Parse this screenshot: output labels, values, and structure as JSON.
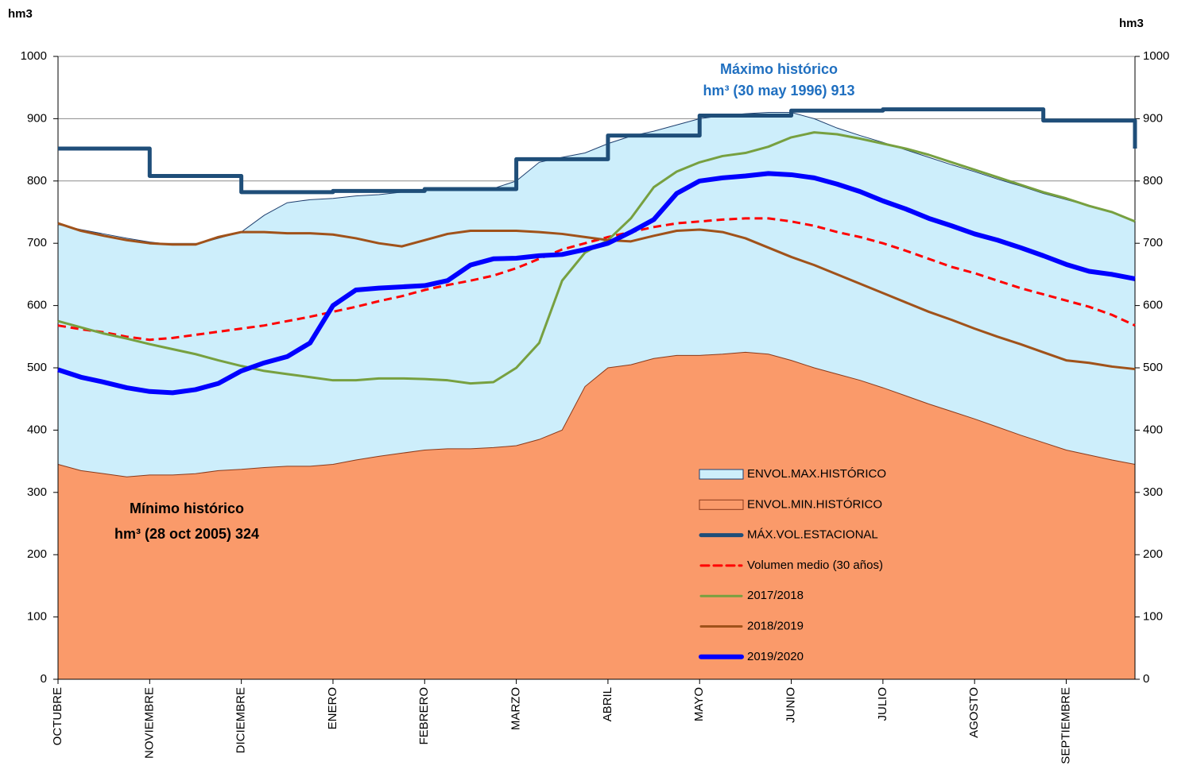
{
  "chart_data": {
    "type": "line",
    "y_label": "hm3",
    "y2_label": "hm3",
    "annotations": [
      "Máximo histórico",
      "hm³ (30 may 1996) 913",
      "Mínimo histórico",
      "hm³ (28 oct 2005) 324"
    ],
    "categories": [
      "OCTUBRE",
      null,
      null,
      null,
      "NOVIEMBRE",
      null,
      null,
      null,
      "DICIEMBRE",
      null,
      null,
      null,
      "ENERO",
      null,
      null,
      null,
      "FEBRERO",
      null,
      null,
      null,
      "MARZO",
      null,
      null,
      null,
      "ABRIL",
      null,
      null,
      null,
      "MAYO",
      null,
      null,
      null,
      "JUNIO",
      null,
      null,
      null,
      "JULIO",
      null,
      null,
      null,
      "AGOSTO",
      null,
      null,
      null,
      "SEPTIEMBRE",
      null,
      null,
      null
    ],
    "ylim": [
      0,
      1000
    ],
    "yticks": [
      0,
      100,
      200,
      300,
      400,
      500,
      600,
      700,
      800,
      900,
      1000
    ],
    "y2lim": [
      0,
      1000
    ],
    "y2ticks": [
      0,
      100,
      200,
      300,
      400,
      500,
      600,
      700,
      800,
      900,
      1000
    ],
    "grid": true,
    "series": [
      {
        "name": "ENVOL.MAX.HISTÓRICO",
        "style": "area",
        "color": "#cdeefb",
        "edge": "#1f3f6e",
        "values": [
          730,
          722,
          715,
          708,
          702,
          698,
          698,
          708,
          718,
          745,
          765,
          770,
          772,
          776,
          778,
          782,
          786,
          787,
          786,
          788,
          800,
          830,
          838,
          845,
          860,
          872,
          880,
          890,
          900,
          905,
          908,
          910,
          910,
          900,
          885,
          873,
          862,
          850,
          838,
          826,
          815,
          803,
          792,
          780,
          770,
          760,
          750,
          735
        ]
      },
      {
        "name": "ENVOL.MIN.HISTÓRICO",
        "style": "area",
        "color": "#fa9a6a",
        "edge": "#8b3a1a",
        "values": [
          345,
          335,
          330,
          325,
          328,
          328,
          330,
          335,
          337,
          340,
          342,
          342,
          345,
          352,
          358,
          363,
          368,
          370,
          370,
          372,
          375,
          385,
          400,
          470,
          500,
          505,
          515,
          520,
          520,
          522,
          525,
          522,
          512,
          500,
          490,
          480,
          468,
          455,
          442,
          430,
          418,
          405,
          392,
          380,
          368,
          360,
          352,
          345
        ]
      },
      {
        "name": "MÁX.VOL.ESTACIONAL",
        "style": "step",
        "color": "#1f4e79",
        "width": 5,
        "values": [
          852,
          852,
          852,
          852,
          808,
          808,
          808,
          808,
          782,
          782,
          782,
          782,
          784,
          784,
          784,
          784,
          787,
          787,
          787,
          787,
          835,
          835,
          835,
          835,
          873,
          873,
          873,
          873,
          905,
          905,
          905,
          905,
          913,
          913,
          913,
          913,
          915,
          915,
          915,
          915,
          915,
          915,
          915,
          897,
          897,
          897,
          897,
          852
        ]
      },
      {
        "name": "Volumen medio (30 años)",
        "style": "dashed",
        "color": "#ff0000",
        "width": 3,
        "values": [
          568,
          562,
          557,
          550,
          545,
          548,
          553,
          558,
          563,
          568,
          575,
          582,
          590,
          598,
          607,
          615,
          625,
          633,
          640,
          648,
          660,
          675,
          690,
          700,
          710,
          718,
          726,
          732,
          735,
          738,
          740,
          740,
          735,
          728,
          718,
          710,
          700,
          688,
          675,
          662,
          652,
          640,
          628,
          618,
          608,
          598,
          585,
          568
        ]
      },
      {
        "name": "2017/2018",
        "style": "line",
        "color": "#77a040",
        "width": 3,
        "values": [
          575,
          565,
          555,
          547,
          538,
          530,
          522,
          512,
          503,
          495,
          490,
          485,
          480,
          480,
          483,
          483,
          482,
          480,
          475,
          477,
          500,
          540,
          640,
          685,
          705,
          740,
          790,
          815,
          830,
          840,
          845,
          855,
          870,
          878,
          875,
          868,
          860,
          852,
          842,
          830,
          818,
          806,
          794,
          782,
          772,
          760,
          750,
          735
        ]
      },
      {
        "name": "2018/2019",
        "style": "line",
        "color": "#a0521a",
        "width": 3,
        "values": [
          732,
          720,
          712,
          705,
          700,
          698,
          698,
          710,
          718,
          718,
          716,
          716,
          714,
          708,
          700,
          695,
          705,
          715,
          720,
          720,
          720,
          718,
          715,
          710,
          705,
          703,
          712,
          720,
          722,
          718,
          708,
          693,
          678,
          665,
          650,
          635,
          620,
          605,
          590,
          577,
          563,
          550,
          538,
          525,
          512,
          508,
          502,
          498
        ]
      },
      {
        "name": "2019/2020",
        "style": "line",
        "color": "#0000ff",
        "width": 6,
        "values": [
          497,
          485,
          477,
          468,
          462,
          460,
          465,
          475,
          495,
          508,
          518,
          540,
          600,
          625,
          628,
          630,
          632,
          640,
          665,
          675,
          676,
          680,
          682,
          690,
          700,
          718,
          738,
          780,
          800,
          805,
          808,
          812,
          810,
          805,
          795,
          783,
          768,
          755,
          740,
          728,
          715,
          705,
          693,
          680,
          666,
          655,
          650,
          643
        ]
      }
    ]
  }
}
